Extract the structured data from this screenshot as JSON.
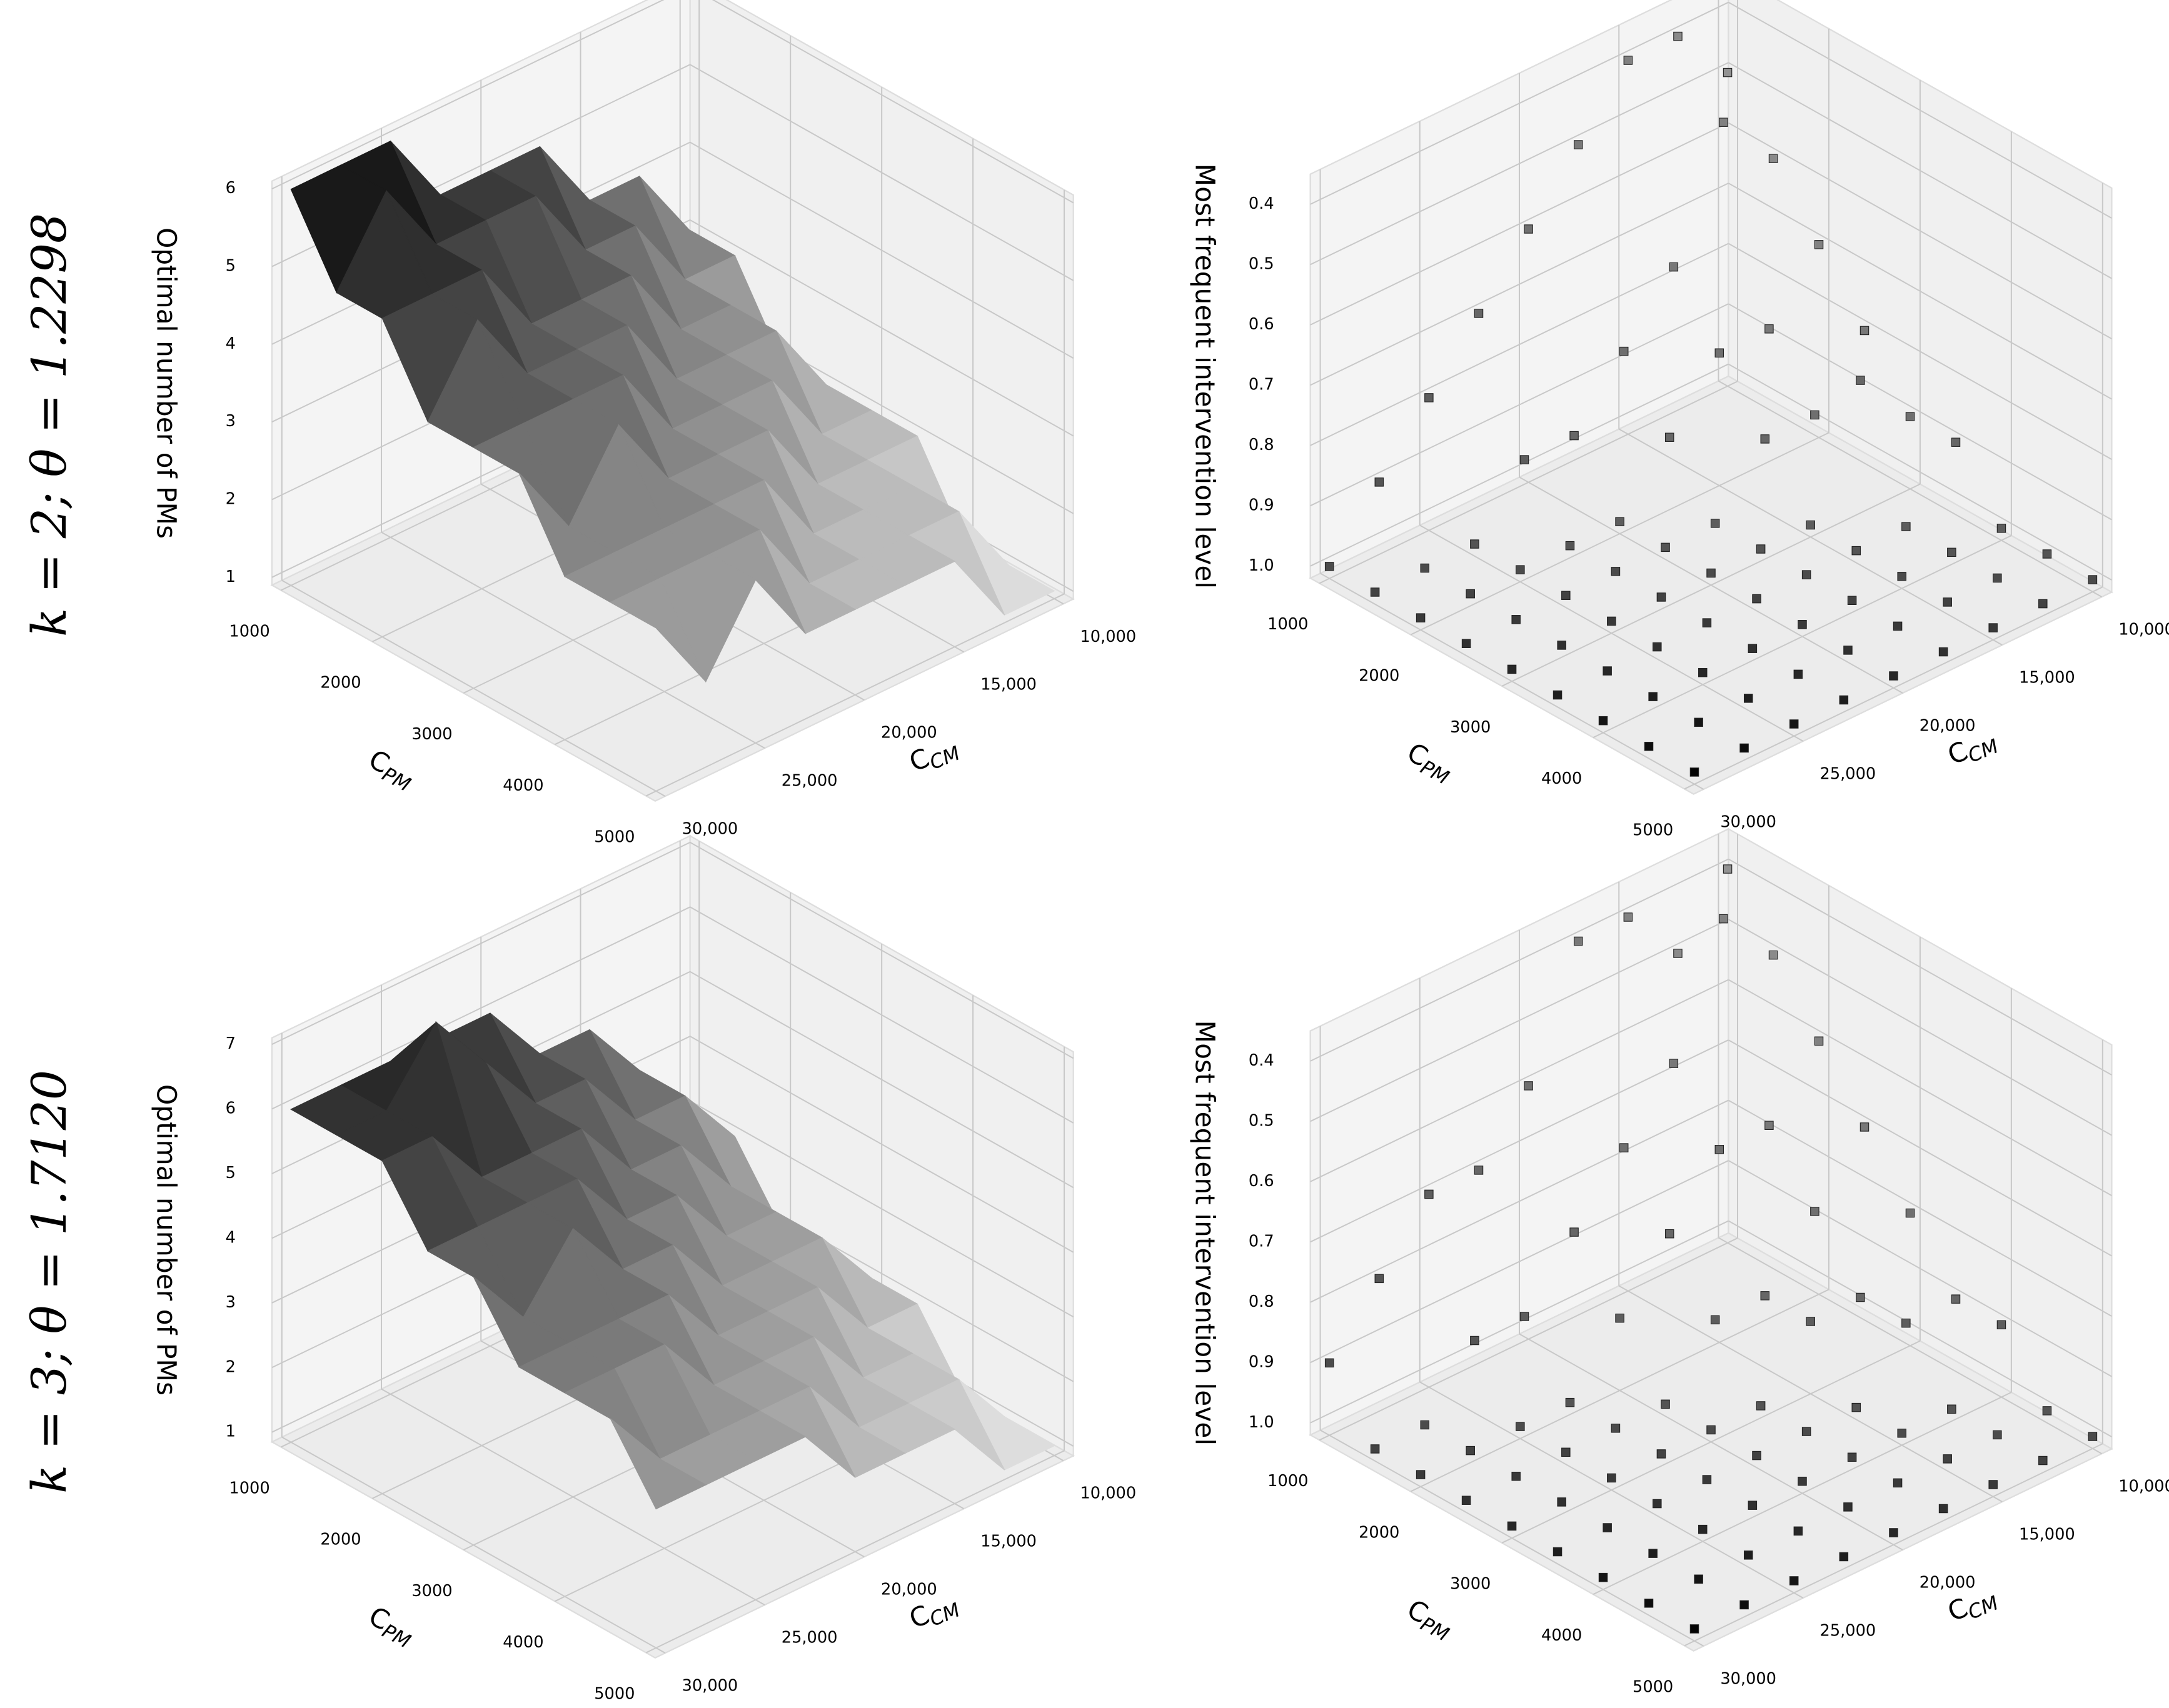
{
  "row_titles": [
    "k = 2; θ = 1.2298",
    "k = 3; θ = 1.7120"
  ],
  "chart_data": [
    {
      "type": "surface3d",
      "colormap": "gray",
      "xlabel": {
        "text": "C",
        "subscript": "PM"
      },
      "ylabel": {
        "text": "C",
        "subscript": "CM"
      },
      "zlabel": "Optimal number of PMs",
      "x": [
        1000,
        1500,
        2000,
        2500,
        3000,
        3500,
        4000,
        4500,
        5000
      ],
      "y": [
        10000,
        12500,
        15000,
        17500,
        20000,
        22500,
        25000,
        27500,
        30000
      ],
      "z": [
        [
          3,
          4,
          4,
          5,
          5,
          5,
          6,
          6,
          6
        ],
        [
          3,
          3,
          4,
          4,
          5,
          5,
          5,
          6,
          5
        ],
        [
          2,
          3,
          3,
          4,
          4,
          4,
          5,
          5,
          5
        ],
        [
          2,
          3,
          3,
          3,
          4,
          4,
          4,
          5,
          4
        ],
        [
          2,
          2,
          3,
          3,
          3,
          4,
          4,
          4,
          4
        ],
        [
          2,
          2,
          2,
          3,
          3,
          3,
          4,
          3,
          4
        ],
        [
          1,
          2,
          2,
          2,
          3,
          3,
          3,
          3,
          3
        ],
        [
          1,
          2,
          2,
          2,
          2,
          3,
          3,
          3,
          3
        ],
        [
          1,
          1,
          2,
          2,
          2,
          2,
          3,
          2,
          3
        ]
      ],
      "xlim": [
        900,
        5100
      ],
      "ylim": [
        9500,
        30500
      ],
      "zlim": [
        0.9,
        6.1
      ],
      "xticks": [
        1000,
        2000,
        3000,
        4000,
        5000
      ],
      "yticks": [
        {
          "value": 10000,
          "label": "10,000"
        },
        {
          "value": 15000,
          "label": "15,000"
        },
        {
          "value": 20000,
          "label": "20,000"
        },
        {
          "value": 25000,
          "label": "25,000"
        },
        {
          "value": 30000,
          "label": "30,000"
        }
      ],
      "zticks": [
        1,
        2,
        3,
        4,
        5,
        6
      ]
    },
    {
      "type": "scatter3d",
      "color": "#000000",
      "depthshade": true,
      "xlabel": {
        "text": "C",
        "subscript": "PM"
      },
      "ylabel": {
        "text": "C",
        "subscript": "CM"
      },
      "zlabel": "Most frequent intervention level",
      "x": [
        1000,
        1500,
        2000,
        2500,
        3000,
        3500,
        4000,
        4500,
        5000
      ],
      "y": [
        10000,
        12500,
        15000,
        17500,
        20000,
        22500,
        25000,
        27500,
        30000
      ],
      "z": [
        [
          0.5,
          0.4,
          0.4,
          0.5,
          0.6,
          0.7,
          0.8,
          0.9,
          1.0
        ],
        [
          0.6,
          0.5,
          0.7,
          0.8,
          0.9,
          0.9,
          1.0,
          1.0,
          1.0
        ],
        [
          0.7,
          0.8,
          0.8,
          0.9,
          1.0,
          1.0,
          1.0,
          1.0,
          1.0
        ],
        [
          0.8,
          0.9,
          0.9,
          1.0,
          1.0,
          1.0,
          1.0,
          1.0,
          1.0
        ],
        [
          0.9,
          0.8,
          1.0,
          1.0,
          1.0,
          1.0,
          1.0,
          1.0,
          1.0
        ],
        [
          0.9,
          1.0,
          1.0,
          1.0,
          1.0,
          1.0,
          1.0,
          1.0,
          1.0
        ],
        [
          1.0,
          1.0,
          1.0,
          1.0,
          1.0,
          1.0,
          1.0,
          1.0,
          1.0
        ],
        [
          1.0,
          1.0,
          1.0,
          1.0,
          1.0,
          1.0,
          1.0,
          1.0,
          1.0
        ],
        [
          1.0,
          1.0,
          1.0,
          1.0,
          1.0,
          1.0,
          1.0,
          1.0,
          1.0
        ]
      ],
      "xlim": [
        900,
        5100
      ],
      "ylim": [
        9500,
        30500
      ],
      "zlim": [
        1.02,
        0.35
      ],
      "xticks": [
        1000,
        2000,
        3000,
        4000,
        5000
      ],
      "yticks": [
        {
          "value": 10000,
          "label": "10,000"
        },
        {
          "value": 15000,
          "label": "15,000"
        },
        {
          "value": 20000,
          "label": "20,000"
        },
        {
          "value": 25000,
          "label": "25,000"
        },
        {
          "value": 30000,
          "label": "30,000"
        }
      ],
      "zticks": [
        0.4,
        0.5,
        0.6,
        0.7,
        0.8,
        0.9,
        {
          "value": 1,
          "label": "1.0"
        }
      ]
    },
    {
      "type": "surface3d",
      "colormap": "gray",
      "xlabel": {
        "text": "C",
        "subscript": "PM"
      },
      "ylabel": {
        "text": "C",
        "subscript": "CM"
      },
      "zlabel": "Optimal number of PMs",
      "x": [
        1000,
        1500,
        2000,
        2500,
        3000,
        3500,
        4000,
        4500,
        5000
      ],
      "y": [
        10000,
        12500,
        15000,
        17500,
        20000,
        22500,
        25000,
        27500,
        30000
      ],
      "z": [
        [
          3,
          4,
          5,
          5,
          6,
          6,
          6,
          6,
          6
        ],
        [
          3,
          4,
          4,
          5,
          5,
          6,
          7,
          6,
          6
        ],
        [
          2,
          3,
          4,
          4,
          5,
          5,
          5,
          6,
          6
        ],
        [
          2,
          3,
          3,
          4,
          4,
          5,
          5,
          5,
          5
        ],
        [
          2,
          3,
          3,
          3,
          4,
          4,
          5,
          4,
          5
        ],
        [
          2,
          2,
          3,
          3,
          3,
          4,
          4,
          4,
          4
        ],
        [
          1,
          2,
          2,
          3,
          3,
          3,
          4,
          4,
          4
        ],
        [
          1,
          2,
          2,
          2,
          3,
          3,
          3,
          3,
          4
        ],
        [
          1,
          1,
          2,
          2,
          2,
          3,
          3,
          3,
          3
        ]
      ],
      "xlim": [
        900,
        5100
      ],
      "ylim": [
        9500,
        30500
      ],
      "zlim": [
        0.85,
        7.1
      ],
      "xticks": [
        1000,
        2000,
        3000,
        4000,
        5000
      ],
      "yticks": [
        {
          "value": 10000,
          "label": "10,000"
        },
        {
          "value": 15000,
          "label": "15,000"
        },
        {
          "value": 20000,
          "label": "20,000"
        },
        {
          "value": 25000,
          "label": "25,000"
        },
        {
          "value": 30000,
          "label": "30,000"
        }
      ],
      "zticks": [
        1,
        2,
        3,
        4,
        5,
        6,
        7
      ]
    },
    {
      "type": "scatter3d",
      "color": "#000000",
      "depthshade": true,
      "xlabel": {
        "text": "C",
        "subscript": "PM"
      },
      "ylabel": {
        "text": "C",
        "subscript": "CM"
      },
      "zlabel": "Most frequent intervention level",
      "x": [
        1000,
        1500,
        2000,
        2500,
        3000,
        3500,
        4000,
        4500,
        5000
      ],
      "y": [
        10000,
        12500,
        15000,
        17500,
        20000,
        22500,
        25000,
        27500,
        30000
      ],
      "z": [
        [
          0.4,
          0.5,
          0.4,
          0.4,
          0.6,
          0.7,
          0.7,
          0.8,
          0.9
        ],
        [
          0.5,
          0.4,
          0.6,
          0.7,
          0.8,
          0.9,
          0.9,
          1.0,
          1.0
        ],
        [
          0.6,
          0.7,
          0.7,
          0.8,
          0.9,
          1.0,
          1.0,
          1.0,
          1.0
        ],
        [
          0.7,
          0.8,
          0.9,
          0.9,
          1.0,
          1.0,
          1.0,
          1.0,
          1.0
        ],
        [
          0.8,
          0.9,
          0.9,
          1.0,
          1.0,
          1.0,
          1.0,
          1.0,
          1.0
        ],
        [
          0.9,
          0.9,
          1.0,
          1.0,
          1.0,
          1.0,
          1.0,
          1.0,
          1.0
        ],
        [
          0.9,
          1.0,
          1.0,
          1.0,
          1.0,
          1.0,
          1.0,
          1.0,
          1.0
        ],
        [
          1.0,
          1.0,
          1.0,
          1.0,
          1.0,
          1.0,
          1.0,
          1.0,
          1.0
        ],
        [
          1.0,
          1.0,
          1.0,
          1.0,
          1.0,
          1.0,
          1.0,
          1.0,
          1.0
        ]
      ],
      "xlim": [
        900,
        5100
      ],
      "ylim": [
        9500,
        30500
      ],
      "zlim": [
        1.02,
        0.35
      ],
      "xticks": [
        1000,
        2000,
        3000,
        4000,
        5000
      ],
      "yticks": [
        {
          "value": 10000,
          "label": "10,000"
        },
        {
          "value": 15000,
          "label": "15,000"
        },
        {
          "value": 20000,
          "label": "20,000"
        },
        {
          "value": 25000,
          "label": "25,000"
        },
        {
          "value": 30000,
          "label": "30,000"
        }
      ],
      "zticks": [
        0.4,
        0.5,
        0.6,
        0.7,
        0.8,
        0.9,
        {
          "value": 1,
          "label": "1.0"
        }
      ]
    }
  ]
}
